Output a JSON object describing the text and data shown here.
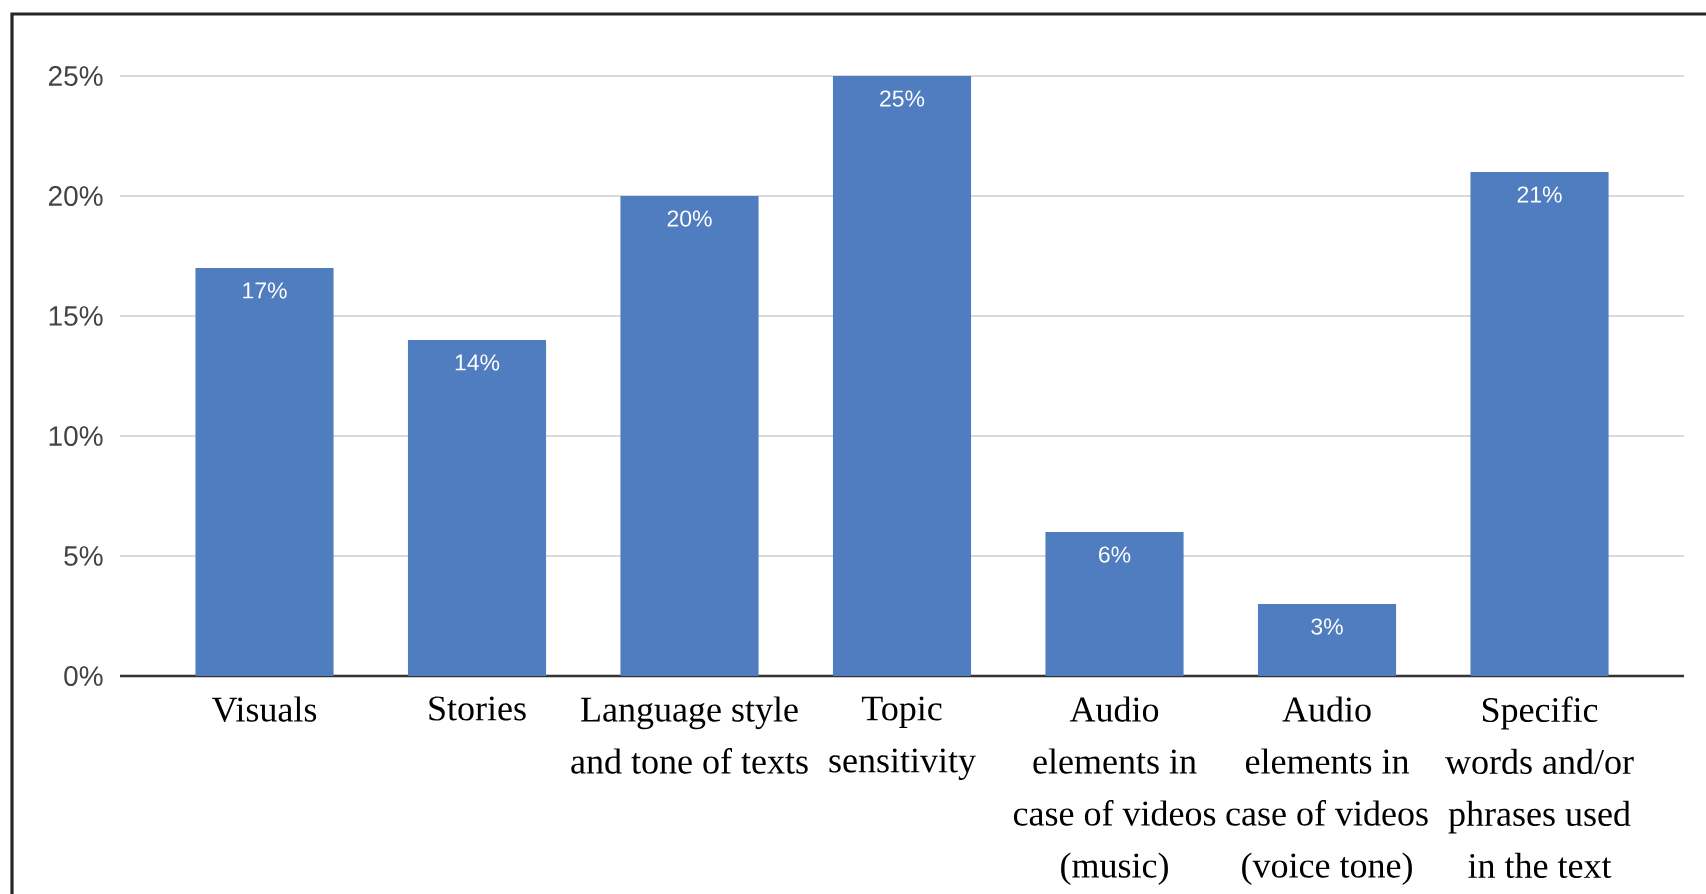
{
  "chart_data": {
    "type": "bar",
    "categories": [
      "Visuals",
      "Stories",
      "Language style\nand tone of texts",
      "Topic\nsensitivity",
      "Audio\nelements in\ncase of videos\n(music)",
      "Audio\nelements in\ncase of videos\n(voice tone)",
      "Specific\nwords and/or\nphrases used\nin the text"
    ],
    "values": [
      17,
      14,
      20,
      25,
      6,
      3,
      21
    ],
    "value_labels": [
      "17%",
      "14%",
      "20%",
      "25%",
      "6%",
      "3%",
      "21%"
    ],
    "color": "#4f7dc0",
    "ylim": [
      0,
      25
    ],
    "yticks": [
      {
        "value": 0,
        "label": "0%"
      },
      {
        "value": 5,
        "label": "5%"
      },
      {
        "value": 10,
        "label": "10%"
      },
      {
        "value": 15,
        "label": "15%"
      },
      {
        "value": 20,
        "label": "20%"
      },
      {
        "value": 25,
        "label": "25%"
      }
    ],
    "grid": "y"
  }
}
